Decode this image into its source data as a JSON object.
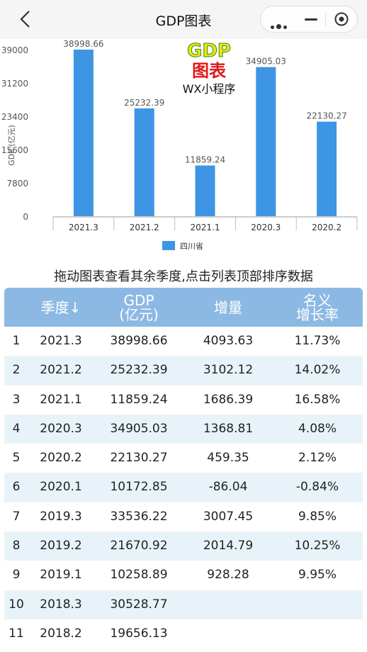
{
  "nav": {
    "title": "GDP图表"
  },
  "logo": {
    "line1": "GDP",
    "line2": "图表",
    "line3": "WX小程序"
  },
  "chart_data": {
    "type": "bar",
    "categories": [
      "2021.3",
      "2021.2",
      "2021.1",
      "2020.3",
      "2020.2"
    ],
    "series": [
      {
        "name": "四川省",
        "values": [
          38998.66,
          25232.39,
          11859.24,
          34905.03,
          22130.27
        ]
      }
    ],
    "ylabel": "GDP (亿元)",
    "yticks": [
      0,
      7800,
      15600,
      23400,
      31200,
      39000
    ],
    "ylim": [
      0,
      39000
    ],
    "color": "#3d95e3",
    "legend": "bottom-center",
    "grid": false
  },
  "hint": "拖动图表查看其余季度,点击列表顶部排序数据",
  "table": {
    "headers": [
      "季度↓",
      "GDP\n(亿元)",
      "增量",
      "名义\n增长率"
    ],
    "rows": [
      [
        "1",
        "2021.3",
        "38998.66",
        "4093.63",
        "11.73%"
      ],
      [
        "2",
        "2021.2",
        "25232.39",
        "3102.12",
        "14.02%"
      ],
      [
        "3",
        "2021.1",
        "11859.24",
        "1686.39",
        "16.58%"
      ],
      [
        "4",
        "2020.3",
        "34905.03",
        "1368.81",
        "4.08%"
      ],
      [
        "5",
        "2020.2",
        "22130.27",
        "459.35",
        "2.12%"
      ],
      [
        "6",
        "2020.1",
        "10172.85",
        "-86.04",
        "-0.84%"
      ],
      [
        "7",
        "2019.3",
        "33536.22",
        "3007.45",
        "9.85%"
      ],
      [
        "8",
        "2019.2",
        "21670.92",
        "2014.79",
        "10.25%"
      ],
      [
        "9",
        "2019.1",
        "10258.89",
        "928.28",
        "9.95%"
      ],
      [
        "10",
        "2018.3",
        "30528.77",
        "",
        ""
      ],
      [
        "11",
        "2018.2",
        "19656.13",
        "",
        ""
      ]
    ]
  }
}
